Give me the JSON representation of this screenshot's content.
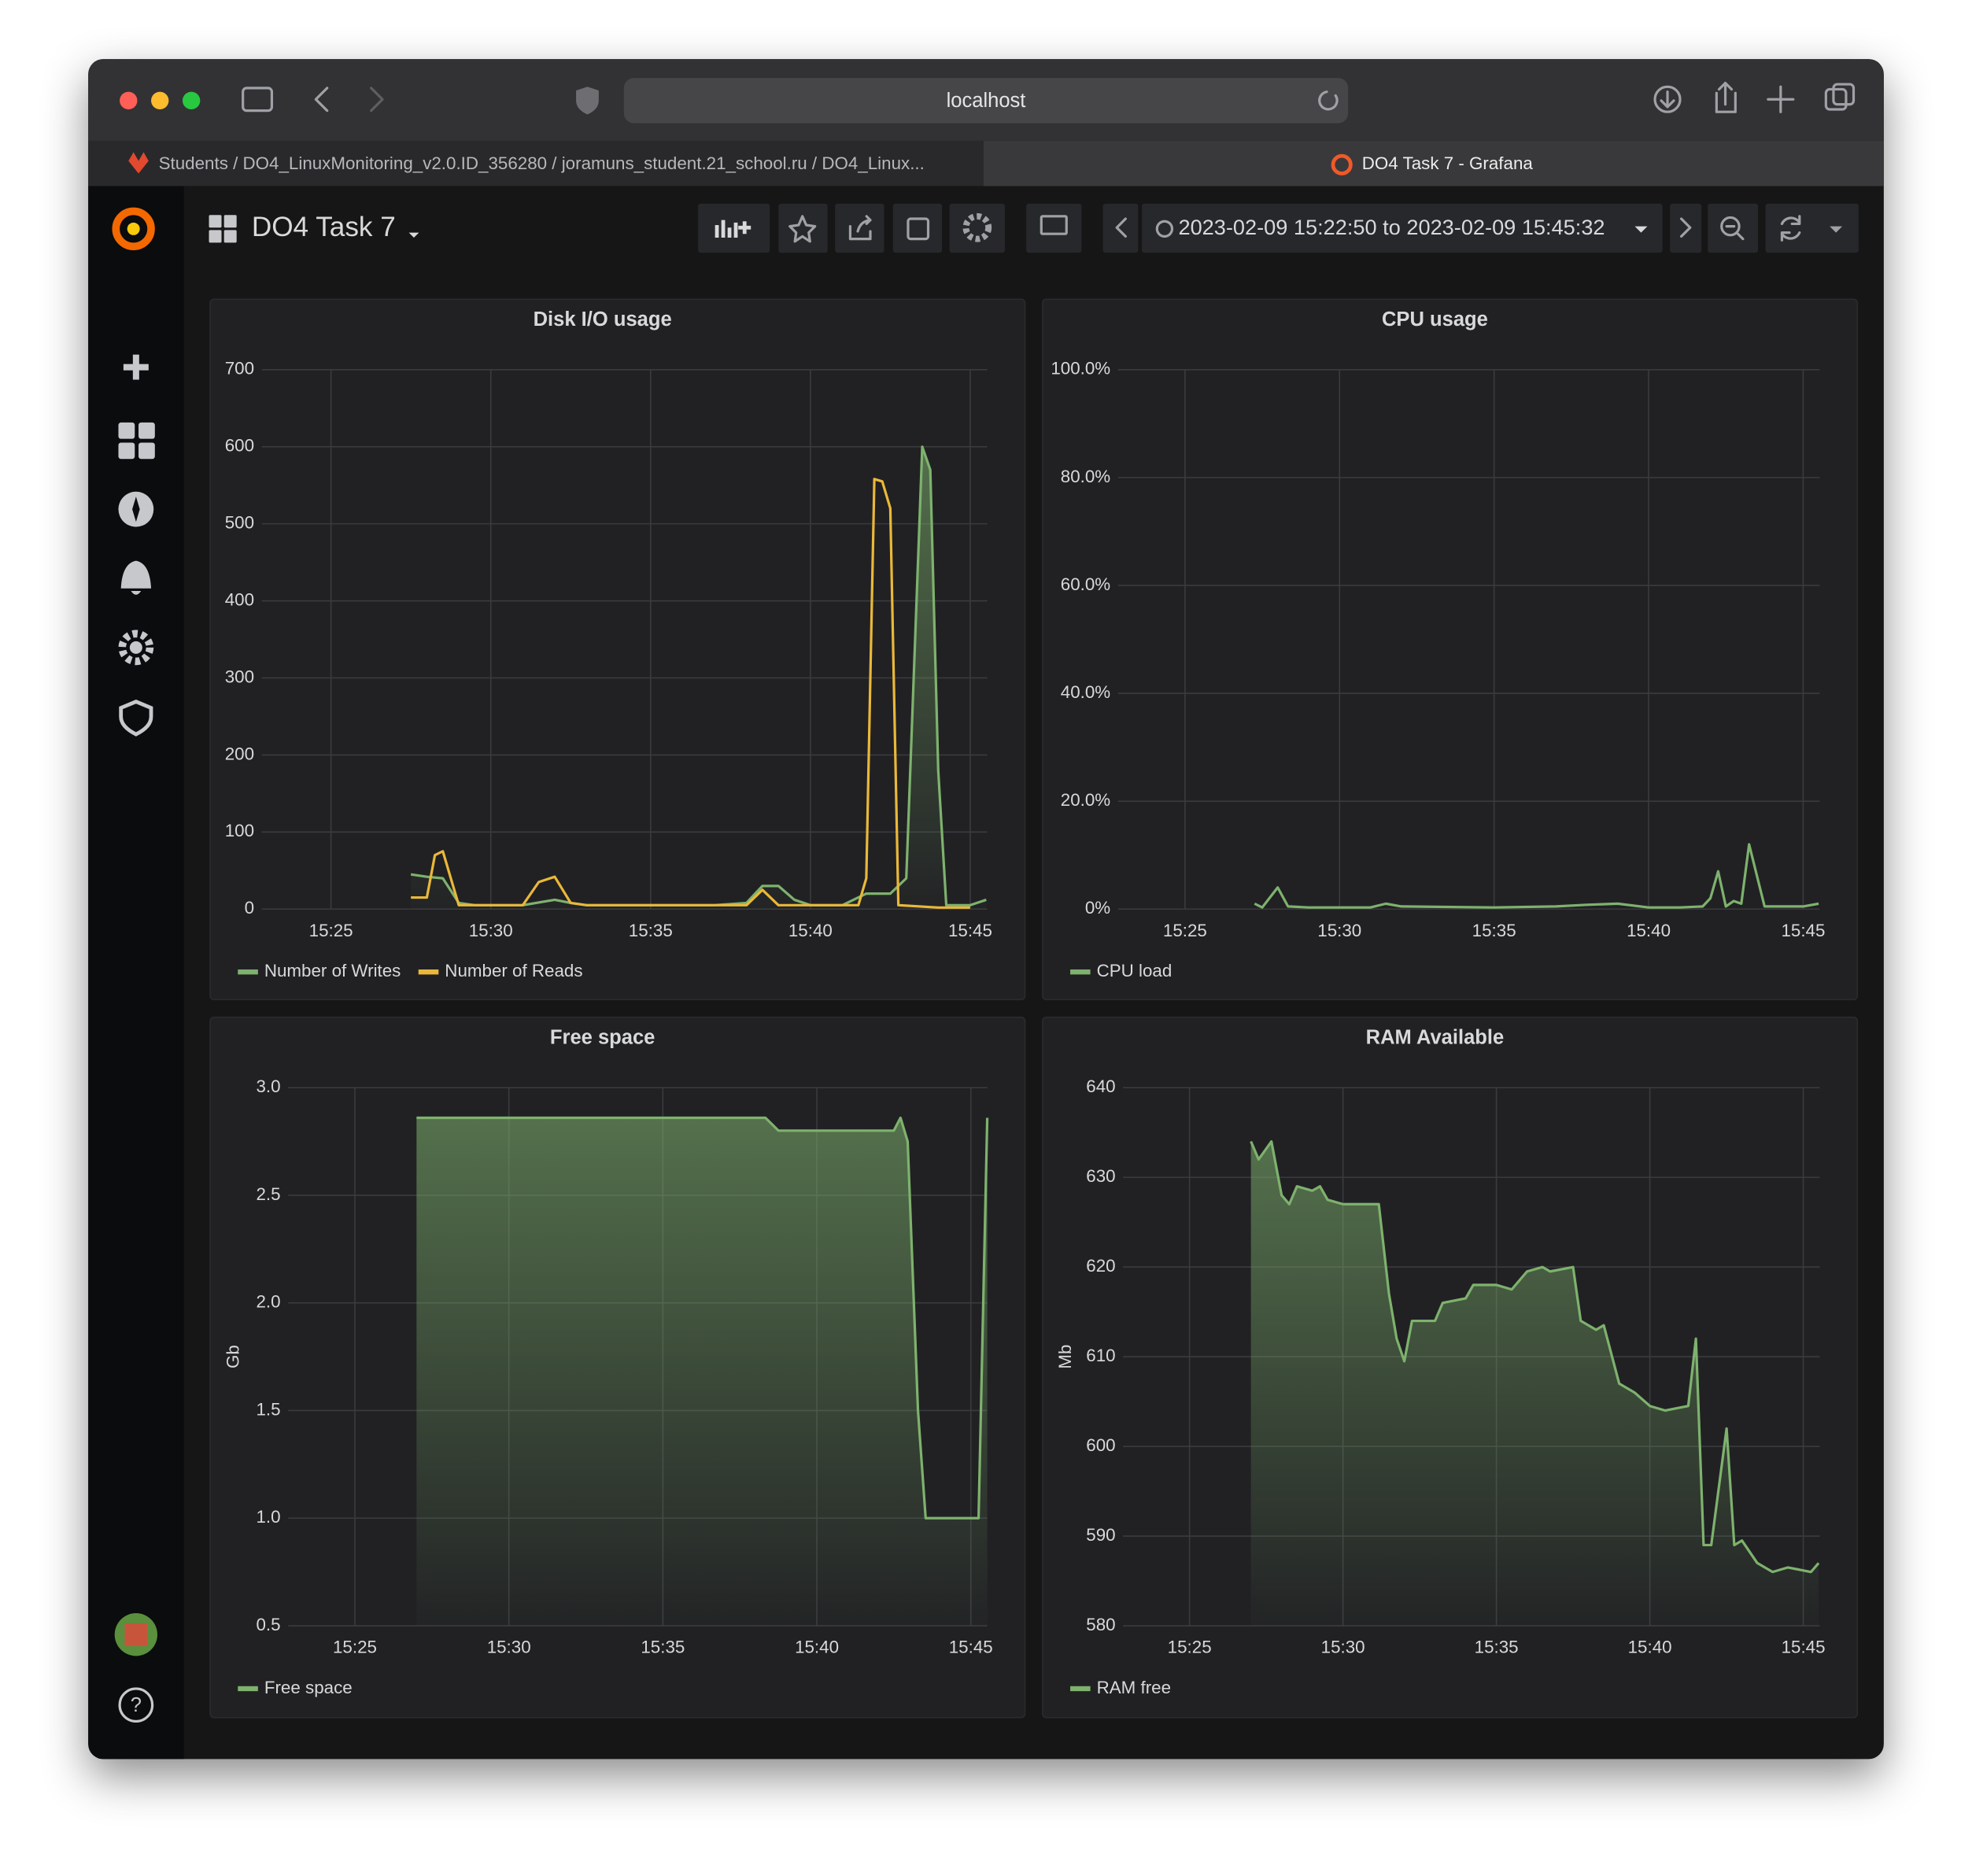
{
  "browser": {
    "url": "localhost",
    "tabs": [
      "Students / DO4_LinuxMonitoring_v2.0.ID_356280 / joramuns_student.21_school.ru / DO4_Linux...",
      "DO4 Task 7 - Grafana"
    ]
  },
  "dashboard": {
    "title": "DO4 Task 7",
    "time_range": "2023-02-09 15:22:50 to 2023-02-09 15:45:32"
  },
  "chart_data": [
    {
      "type": "line",
      "title": "Disk I/O usage",
      "xlim": [
        "15:22:50",
        "15:45:32"
      ],
      "xticks": [
        "15:25",
        "15:30",
        "15:35",
        "15:40",
        "15:45"
      ],
      "ylim": [
        0,
        700
      ],
      "yticks": [
        0,
        100,
        200,
        300,
        400,
        500,
        600,
        700
      ],
      "grid": true,
      "series": [
        {
          "name": "Number of Writes",
          "color": "#7eb26d",
          "fill": true,
          "x": [
            "15:27:30",
            "15:28:00",
            "15:28:30",
            "15:29:00",
            "15:29:30",
            "15:30:00",
            "15:31:00",
            "15:32:00",
            "15:32:30",
            "15:33:00",
            "15:35:00",
            "15:37:00",
            "15:38:00",
            "15:38:30",
            "15:39:00",
            "15:39:30",
            "15:40:00",
            "15:41:00",
            "15:41:45",
            "15:42:30",
            "15:43:00",
            "15:43:30",
            "15:43:45",
            "15:44:00",
            "15:44:15",
            "15:45:00",
            "15:45:30"
          ],
          "values": [
            45,
            42,
            40,
            8,
            5,
            5,
            5,
            12,
            8,
            5,
            5,
            5,
            8,
            30,
            30,
            12,
            5,
            5,
            20,
            20,
            40,
            600,
            570,
            180,
            5,
            5,
            12
          ]
        },
        {
          "name": "Number of Reads",
          "color": "#eab839",
          "x": [
            "15:27:30",
            "15:28:00",
            "15:28:15",
            "15:28:30",
            "15:29:00",
            "15:29:30",
            "15:30:00",
            "15:31:00",
            "15:31:30",
            "15:32:00",
            "15:32:30",
            "15:33:00",
            "15:35:00",
            "15:37:00",
            "15:38:00",
            "15:38:30",
            "15:39:00",
            "15:40:00",
            "15:41:30",
            "15:41:45",
            "15:42:00",
            "15:42:15",
            "15:42:30",
            "15:42:45",
            "15:44:00",
            "15:45:00"
          ],
          "values": [
            15,
            15,
            70,
            75,
            5,
            5,
            5,
            5,
            35,
            42,
            8,
            5,
            5,
            5,
            5,
            25,
            5,
            5,
            5,
            40,
            558,
            555,
            520,
            5,
            2,
            2
          ]
        }
      ],
      "legend": "bottom-left"
    },
    {
      "type": "line",
      "title": "CPU usage",
      "xlim": [
        "15:22:50",
        "15:45:32"
      ],
      "xticks": [
        "15:25",
        "15:30",
        "15:35",
        "15:40",
        "15:45"
      ],
      "ylim": [
        0,
        100
      ],
      "yticks": [
        {
          "value": 0,
          "label": "0%"
        },
        {
          "value": 20,
          "label": "20.0%"
        },
        {
          "value": 40,
          "label": "40.0%"
        },
        {
          "value": 60,
          "label": "60.0%"
        },
        {
          "value": 80,
          "label": "80.0%"
        },
        {
          "value": 100,
          "label": "100.0%"
        }
      ],
      "grid": true,
      "series": [
        {
          "name": "CPU load",
          "color": "#7eb26d",
          "x": [
            "15:27:15",
            "15:27:30",
            "15:28:00",
            "15:28:20",
            "15:29:00",
            "15:31:00",
            "15:31:30",
            "15:32:00",
            "15:35:00",
            "15:37:00",
            "15:38:00",
            "15:39:00",
            "15:40:00",
            "15:41:00",
            "15:41:45",
            "15:42:00",
            "15:42:15",
            "15:42:30",
            "15:42:45",
            "15:43:00",
            "15:43:15",
            "15:43:45",
            "15:45:00",
            "15:45:30"
          ],
          "values": [
            1,
            0.3,
            4,
            0.5,
            0.3,
            0.3,
            1,
            0.5,
            0.3,
            0.5,
            0.8,
            1,
            0.3,
            0.3,
            0.5,
            2,
            7,
            0.5,
            1.5,
            1,
            12,
            0.5,
            0.5,
            1
          ]
        }
      ],
      "legend": "bottom-left"
    },
    {
      "type": "line",
      "title": "Free space",
      "ylabel": "Gb",
      "xlim": [
        "15:22:50",
        "15:45:32"
      ],
      "xticks": [
        "15:25",
        "15:30",
        "15:35",
        "15:40",
        "15:45"
      ],
      "ylim": [
        0.5,
        3
      ],
      "yticks": [
        0.5,
        {
          "value": 1,
          "label": "1.0"
        },
        1.5,
        {
          "value": 2,
          "label": "2.0"
        },
        2.5,
        {
          "value": 3,
          "label": "3.0"
        }
      ],
      "grid": true,
      "series": [
        {
          "name": "Free space",
          "color": "#7eb26d",
          "fill": true,
          "x": [
            "15:27:00",
            "15:30:00",
            "15:35:00",
            "15:38:20",
            "15:38:45",
            "15:40:00",
            "15:42:30",
            "15:42:43",
            "15:42:57",
            "15:43:17",
            "15:43:32",
            "15:45:15",
            "15:45:32"
          ],
          "values": [
            2.86,
            2.86,
            2.86,
            2.86,
            2.8,
            2.8,
            2.8,
            2.86,
            2.75,
            1.5,
            1,
            1,
            2.86
          ]
        }
      ],
      "legend": "bottom-left"
    },
    {
      "type": "line",
      "title": "RAM Available",
      "ylabel": "Mb",
      "xlim": [
        "15:22:50",
        "15:45:32"
      ],
      "xticks": [
        "15:25",
        "15:30",
        "15:35",
        "15:40",
        "15:45"
      ],
      "ylim": [
        580,
        640
      ],
      "yticks": [
        580,
        590,
        600,
        610,
        620,
        630,
        640
      ],
      "grid": true,
      "series": [
        {
          "name": "RAM free",
          "color": "#7eb26d",
          "fill": true,
          "x": [
            "15:27:00",
            "15:27:15",
            "15:27:40",
            "15:28:00",
            "15:28:15",
            "15:28:30",
            "15:29:00",
            "15:29:15",
            "15:29:30",
            "15:30:00",
            "15:30:30",
            "15:31:10",
            "15:31:30",
            "15:31:45",
            "15:32:00",
            "15:32:15",
            "15:33:00",
            "15:33:15",
            "15:34:00",
            "15:34:15",
            "15:35:00",
            "15:35:30",
            "15:36:00",
            "15:36:30",
            "15:36:45",
            "15:37:30",
            "15:37:45",
            "15:38:15",
            "15:38:30",
            "15:39:00",
            "15:39:30",
            "15:40:00",
            "15:40:30",
            "15:41:15",
            "15:41:30",
            "15:41:45",
            "15:42:00",
            "15:42:30",
            "15:42:45",
            "15:43:00",
            "15:43:30",
            "15:44:00",
            "15:44:30",
            "15:45:15",
            "15:45:30"
          ],
          "values": [
            634,
            632,
            634,
            628,
            627,
            629,
            628.5,
            629,
            627.5,
            627,
            627,
            627,
            617,
            612,
            609.5,
            614,
            614,
            616,
            616.5,
            618,
            618,
            617.5,
            619.5,
            620,
            619.5,
            620,
            614,
            613,
            613.5,
            607,
            606,
            604.5,
            604,
            604.5,
            612,
            589,
            589,
            602,
            589,
            589.5,
            587,
            586,
            586.5,
            586,
            587
          ]
        }
      ],
      "legend": "bottom-left"
    }
  ]
}
